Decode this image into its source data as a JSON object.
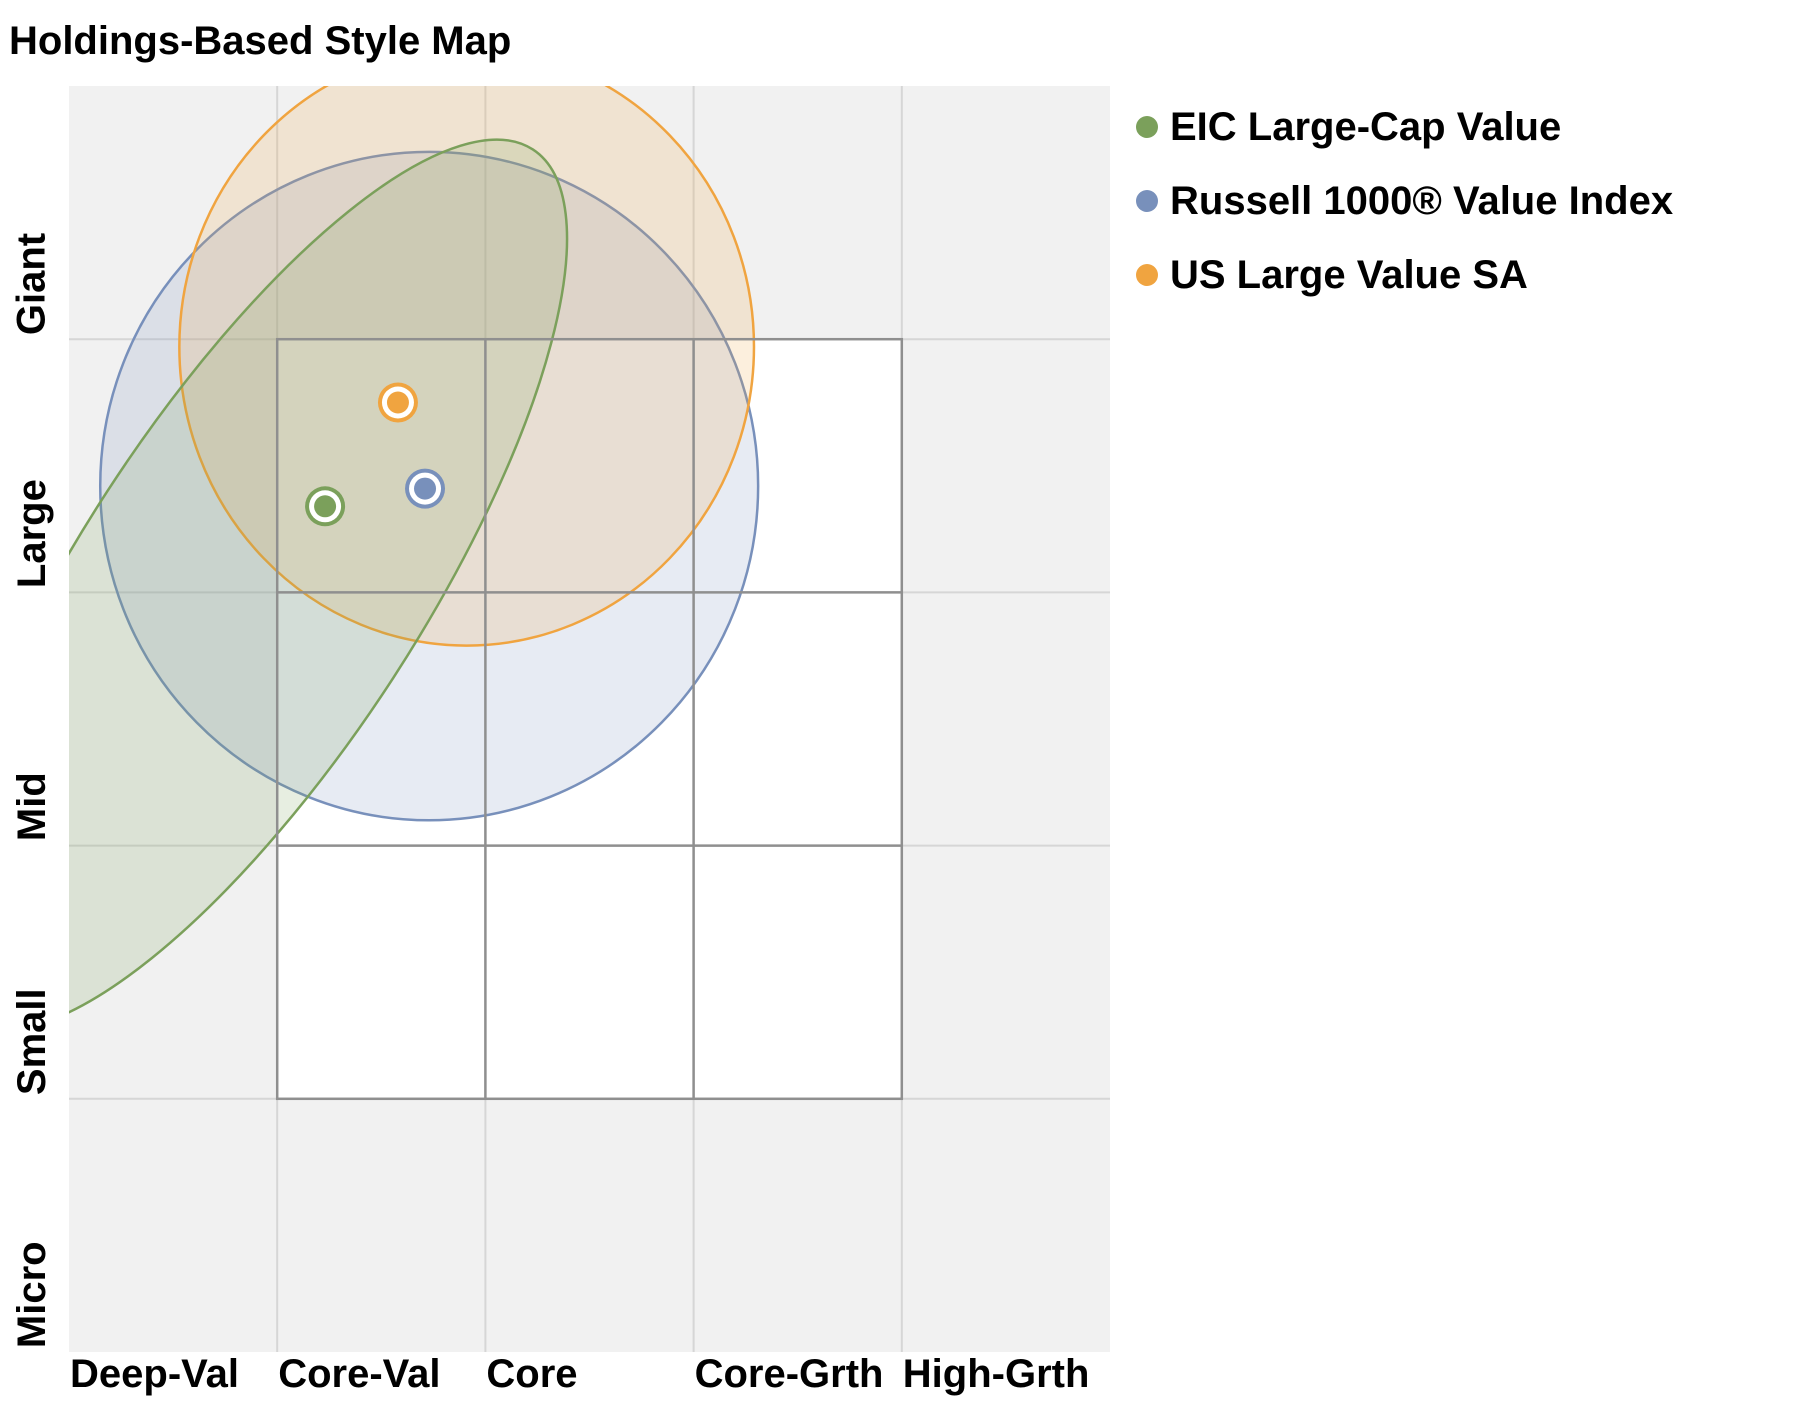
{
  "chart_data": {
    "type": "scatter",
    "title": "Holdings-Based Style Map",
    "x_axis": {
      "tick_labels": [
        "Deep-Val",
        "Core-Val",
        "Core",
        "Core-Grth",
        "High-Grth"
      ],
      "range": [
        0,
        5
      ]
    },
    "y_axis": {
      "tick_labels": [
        "Micro",
        "Small",
        "Mid",
        "Large",
        "Giant"
      ],
      "range": [
        0,
        5
      ]
    },
    "grid": true,
    "style_box": {
      "x": [
        1,
        4
      ],
      "y": [
        1,
        4
      ]
    },
    "legend_position": "right",
    "series": [
      {
        "name": "EIC Large-Cap Value",
        "color": "#7ba05b",
        "centroid": {
          "x": 1.23,
          "y": 3.34
        },
        "ellipse": {
          "cx": 0.87,
          "cy": 3.03,
          "rx": 0.82,
          "ry": 2.05,
          "rotation": 33
        }
      },
      {
        "name": "Russell 1000® Value Index",
        "color": "#7890bb",
        "centroid": {
          "x": 1.71,
          "y": 3.41
        },
        "ellipse": {
          "cx": 1.73,
          "cy": 3.42,
          "rx": 1.58,
          "ry": 1.32,
          "rotation": 0
        }
      },
      {
        "name": "US Large Value SA",
        "color": "#f0a440",
        "centroid": {
          "x": 1.58,
          "y": 3.75
        },
        "ellipse": {
          "cx": 1.91,
          "cy": 3.97,
          "rx": 1.38,
          "ry": 1.18,
          "rotation": 0
        }
      }
    ]
  }
}
